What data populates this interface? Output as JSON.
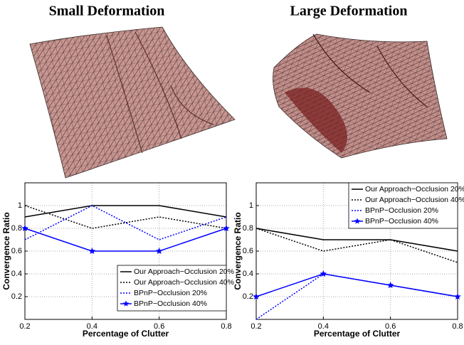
{
  "titles": [
    "Small Deformation",
    "Large Deformation"
  ],
  "chart_data": [
    {
      "type": "line",
      "x": [
        0.2,
        0.4,
        0.6,
        0.8
      ],
      "xlim": [
        0.2,
        0.8
      ],
      "xticks": [
        0.2,
        0.4,
        0.6,
        0.8
      ],
      "ylim": [
        0,
        1.2
      ],
      "yticks": [
        0.2,
        0.4,
        0.6,
        0.8,
        1
      ],
      "x_label": "Percentage of Clutter",
      "y_label": "Convergence Ratio",
      "grid": true,
      "legend": "lower right",
      "series": [
        {
          "name": "Our Approach−Occlusion 20%",
          "color": "#000000",
          "linestyle": "solid",
          "values": [
            0.9,
            1.0,
            1.0,
            0.9
          ]
        },
        {
          "name": "Our Approach−Occlusion 40%",
          "color": "#000000",
          "linestyle": "dotted",
          "values": [
            1.0,
            0.8,
            0.9,
            0.8
          ]
        },
        {
          "name": "BPnP−Occlusion 20%",
          "color": "#0000ff",
          "linestyle": "dotted",
          "values": [
            0.7,
            1.0,
            0.7,
            0.9
          ]
        },
        {
          "name": "BPnP−Occlusion 40%",
          "color": "#0000ff",
          "linestyle": "solid",
          "marker": "star",
          "values": [
            0.8,
            0.6,
            0.6,
            0.8
          ]
        }
      ]
    },
    {
      "type": "line",
      "x": [
        0.2,
        0.4,
        0.6,
        0.8
      ],
      "xlim": [
        0.2,
        0.8
      ],
      "xticks": [
        0.2,
        0.4,
        0.6,
        0.8
      ],
      "ylim": [
        0,
        1.2
      ],
      "yticks": [
        0.2,
        0.4,
        0.6,
        0.8,
        1
      ],
      "x_label": "Percentage of Clutter",
      "y_label": "Convergence Ratio",
      "grid": true,
      "legend": "upper right",
      "series": [
        {
          "name": "Our Approach−Occlusion 20%",
          "color": "#000000",
          "linestyle": "solid",
          "values": [
            0.8,
            0.7,
            0.7,
            0.6
          ]
        },
        {
          "name": "Our Approach−Occlusion 40%",
          "color": "#000000",
          "linestyle": "dotted",
          "values": [
            0.8,
            0.6,
            0.7,
            0.5
          ]
        },
        {
          "name": "BPnP−Occlusion 20%",
          "color": "#0000ff",
          "linestyle": "dotted",
          "values": [
            0.0,
            0.4,
            0.3,
            0.2
          ]
        },
        {
          "name": "BPnP−Occlusion 40%",
          "color": "#0000ff",
          "linestyle": "solid",
          "marker": "star",
          "values": [
            0.2,
            0.4,
            0.3,
            0.2
          ]
        }
      ]
    }
  ]
}
